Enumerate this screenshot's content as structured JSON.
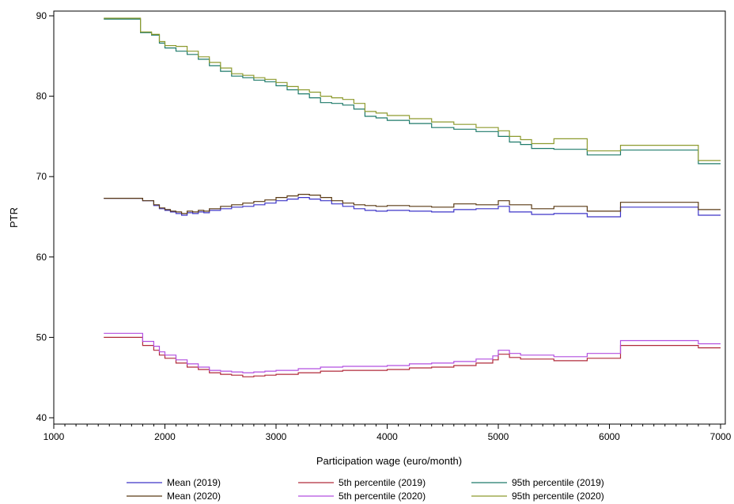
{
  "chart_data": {
    "type": "line",
    "xlabel": "Participation wage (euro/month)",
    "ylabel": "PTR",
    "xlim": [
      1000,
      7000
    ],
    "ylim": [
      40,
      90
    ],
    "xticks": [
      1000,
      2000,
      3000,
      4000,
      5000,
      6000,
      7000
    ],
    "yticks": [
      40,
      50,
      60,
      70,
      80,
      90
    ],
    "xminor_step": 100,
    "step": true,
    "grid": false,
    "legend_position": "bottom",
    "series": [
      {
        "name": "Mean (2019)",
        "color": "#3d35c8",
        "x": [
          1450,
          1750,
          1800,
          1900,
          1950,
          2000,
          2050,
          2100,
          2150,
          2200,
          2250,
          2300,
          2350,
          2400,
          2500,
          2600,
          2700,
          2800,
          2900,
          3000,
          3100,
          3200,
          3300,
          3400,
          3500,
          3600,
          3700,
          3800,
          3900,
          4000,
          4200,
          4400,
          4600,
          4800,
          5000,
          5100,
          5300,
          5500,
          5800,
          6100,
          6800,
          7000
        ],
        "y": [
          67.3,
          67.3,
          67.0,
          66.4,
          66.0,
          65.8,
          65.6,
          65.4,
          65.2,
          65.5,
          65.4,
          65.6,
          65.5,
          65.8,
          66.0,
          66.2,
          66.3,
          66.5,
          66.7,
          67.0,
          67.2,
          67.4,
          67.2,
          67.0,
          66.6,
          66.3,
          66.0,
          65.8,
          65.7,
          65.8,
          65.7,
          65.6,
          65.9,
          66.0,
          66.3,
          65.6,
          65.3,
          65.4,
          65.0,
          66.2,
          65.2,
          65.2
        ]
      },
      {
        "name": "Mean (2020)",
        "color": "#5a3a14",
        "x": [
          1450,
          1750,
          1800,
          1900,
          1950,
          2000,
          2050,
          2100,
          2150,
          2200,
          2250,
          2300,
          2350,
          2400,
          2500,
          2600,
          2700,
          2800,
          2900,
          3000,
          3100,
          3200,
          3300,
          3400,
          3500,
          3600,
          3700,
          3800,
          3900,
          4000,
          4200,
          4400,
          4600,
          4800,
          5000,
          5100,
          5300,
          5500,
          5800,
          6100,
          6800,
          7000
        ],
        "y": [
          67.3,
          67.3,
          67.0,
          66.5,
          66.1,
          65.9,
          65.7,
          65.6,
          65.4,
          65.7,
          65.6,
          65.8,
          65.7,
          66.0,
          66.3,
          66.5,
          66.7,
          66.9,
          67.1,
          67.4,
          67.6,
          67.8,
          67.7,
          67.4,
          67.0,
          66.7,
          66.5,
          66.4,
          66.3,
          66.4,
          66.3,
          66.2,
          66.6,
          66.5,
          67.0,
          66.5,
          66.0,
          66.3,
          65.7,
          66.8,
          65.9,
          65.9
        ]
      },
      {
        "name": "5th percentile (2019)",
        "color": "#b02a3a",
        "x": [
          1450,
          1750,
          1800,
          1900,
          1950,
          2000,
          2100,
          2200,
          2300,
          2400,
          2500,
          2600,
          2700,
          2800,
          2900,
          3000,
          3200,
          3400,
          3600,
          3800,
          4000,
          4200,
          4400,
          4600,
          4800,
          4950,
          5000,
          5100,
          5200,
          5500,
          5800,
          6100,
          6800,
          7000
        ],
        "y": [
          50.0,
          50.0,
          49.0,
          48.4,
          47.8,
          47.4,
          46.8,
          46.3,
          46.0,
          45.6,
          45.4,
          45.3,
          45.1,
          45.2,
          45.3,
          45.4,
          45.6,
          45.8,
          45.9,
          45.9,
          46.0,
          46.2,
          46.3,
          46.5,
          46.8,
          47.2,
          47.9,
          47.5,
          47.3,
          47.1,
          47.4,
          49.0,
          48.7,
          48.7
        ]
      },
      {
        "name": "5th percentile (2020)",
        "color": "#b24fe0",
        "x": [
          1450,
          1750,
          1800,
          1900,
          1950,
          2000,
          2100,
          2200,
          2300,
          2400,
          2500,
          2600,
          2700,
          2800,
          2900,
          3000,
          3200,
          3400,
          3600,
          3800,
          4000,
          4200,
          4400,
          4600,
          4800,
          4950,
          5000,
          5100,
          5200,
          5500,
          5800,
          6100,
          6800,
          7000
        ],
        "y": [
          50.5,
          50.5,
          49.5,
          48.9,
          48.2,
          47.8,
          47.2,
          46.7,
          46.3,
          45.9,
          45.8,
          45.7,
          45.6,
          45.7,
          45.8,
          45.9,
          46.1,
          46.3,
          46.4,
          46.4,
          46.5,
          46.7,
          46.8,
          47.0,
          47.3,
          47.7,
          48.4,
          48.0,
          47.8,
          47.6,
          48.0,
          49.6,
          49.2,
          49.2
        ]
      },
      {
        "name": "95th percentile (2019)",
        "color": "#1e7a6a",
        "x": [
          1450,
          1750,
          1780,
          1880,
          1950,
          2000,
          2100,
          2200,
          2300,
          2400,
          2500,
          2600,
          2700,
          2800,
          2900,
          3000,
          3100,
          3200,
          3300,
          3400,
          3500,
          3600,
          3700,
          3800,
          3900,
          4000,
          4200,
          4400,
          4600,
          4800,
          5000,
          5100,
          5200,
          5300,
          5500,
          5800,
          6100,
          6800,
          7000
        ],
        "y": [
          89.6,
          89.6,
          87.9,
          87.6,
          86.6,
          86.0,
          85.6,
          85.2,
          84.6,
          83.8,
          83.1,
          82.5,
          82.3,
          82.0,
          81.8,
          81.3,
          80.8,
          80.3,
          79.8,
          79.2,
          79.1,
          78.9,
          78.4,
          77.5,
          77.3,
          77.0,
          76.6,
          76.1,
          75.9,
          75.6,
          75.0,
          74.3,
          74.0,
          73.5,
          73.4,
          72.7,
          73.3,
          71.6,
          71.6
        ]
      },
      {
        "name": "95th percentile (2020)",
        "color": "#8d9a2e",
        "x": [
          1450,
          1750,
          1780,
          1880,
          1950,
          2000,
          2100,
          2200,
          2300,
          2400,
          2500,
          2600,
          2700,
          2800,
          2900,
          3000,
          3100,
          3200,
          3300,
          3400,
          3500,
          3600,
          3700,
          3800,
          3900,
          4000,
          4200,
          4400,
          4600,
          4800,
          5000,
          5100,
          5200,
          5300,
          5500,
          5800,
          6100,
          6800,
          7000
        ],
        "y": [
          89.7,
          89.7,
          88.0,
          87.7,
          86.8,
          86.3,
          86.2,
          85.6,
          84.9,
          84.2,
          83.5,
          82.8,
          82.6,
          82.3,
          82.1,
          81.7,
          81.2,
          80.8,
          80.5,
          80.0,
          79.8,
          79.6,
          79.1,
          78.1,
          77.9,
          77.6,
          77.2,
          76.8,
          76.5,
          76.1,
          75.7,
          75.0,
          74.6,
          74.1,
          74.7,
          73.2,
          73.9,
          72.0,
          72.0
        ]
      }
    ]
  }
}
